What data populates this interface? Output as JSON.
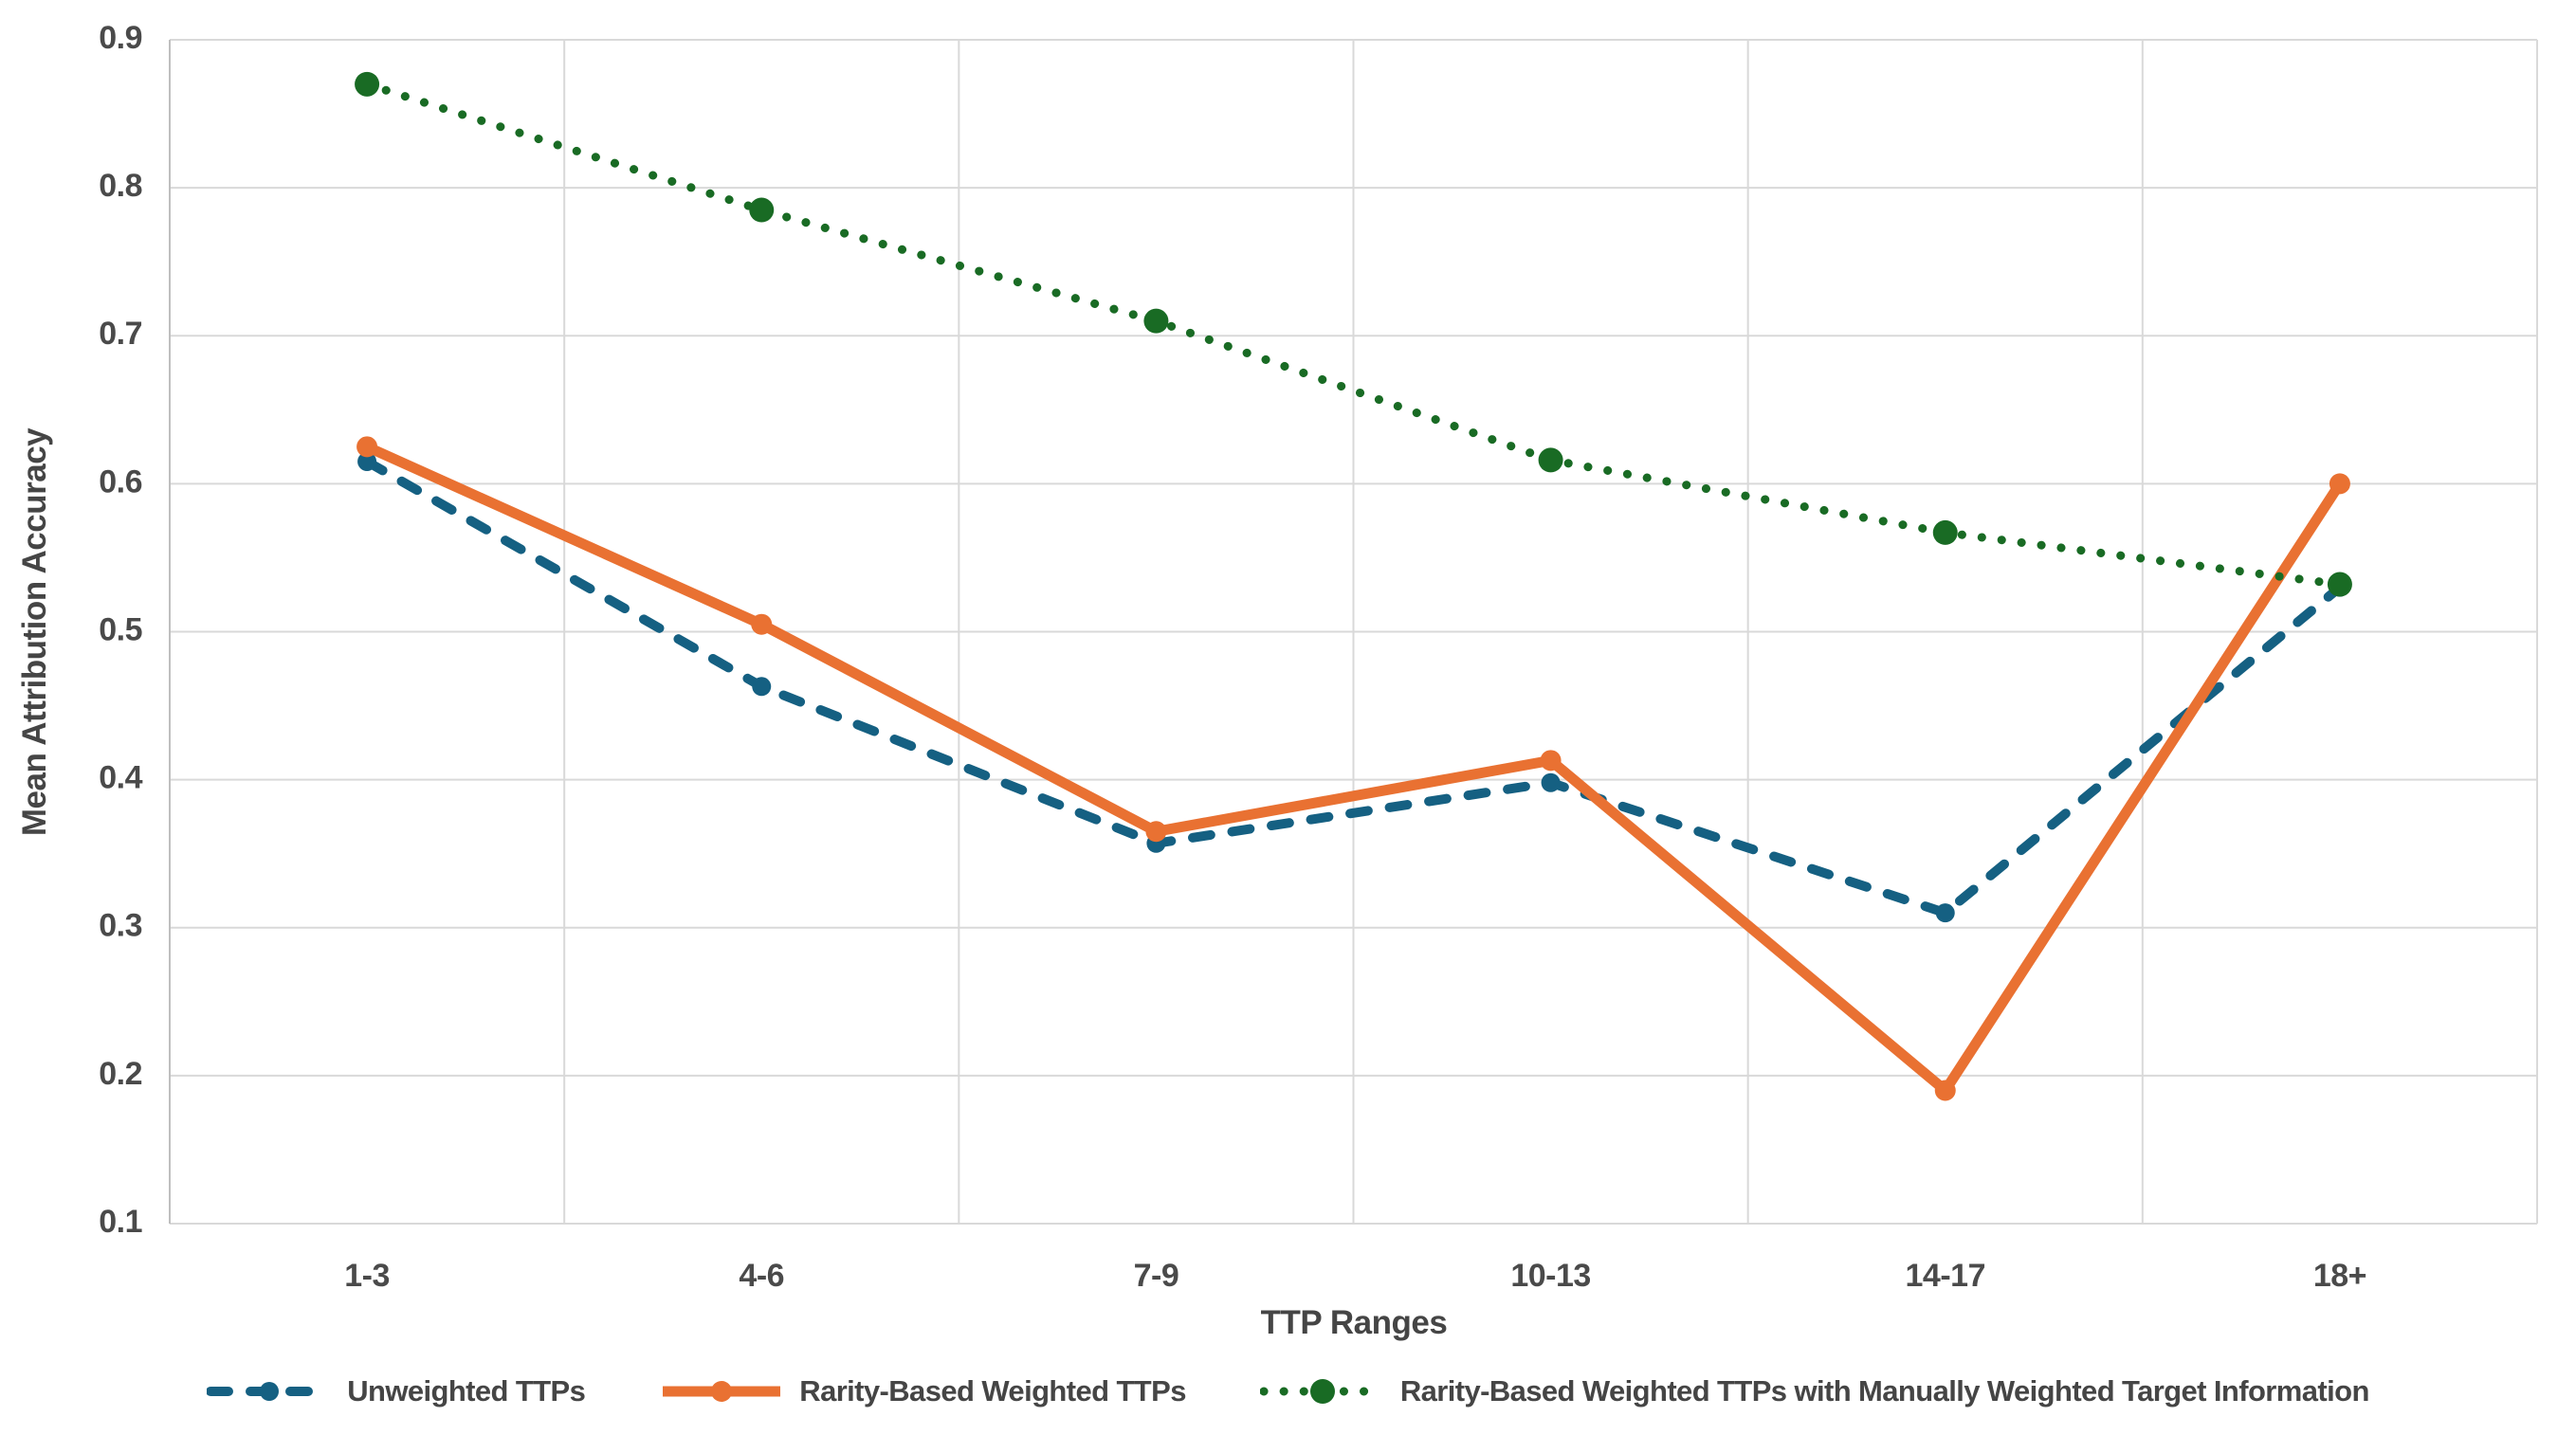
{
  "chart_data": {
    "type": "line",
    "title": "",
    "xlabel": "TTP Ranges",
    "ylabel": "Mean Attribution Accuracy",
    "categories": [
      "1-3",
      "4-6",
      "7-9",
      "10-13",
      "14-17",
      "18+"
    ],
    "y_axis": {
      "min": 0.1,
      "max": 0.9,
      "tick_step": 0.1,
      "tick_labels": [
        "0.9",
        "0.8",
        "0.7",
        "0.6",
        "0.5",
        "0.4",
        "0.3",
        "0.2",
        "0.1"
      ]
    },
    "grid": true,
    "legend_position": "bottom",
    "series": [
      {
        "name": "Unweighted TTPs",
        "color": "#156082",
        "line_style": "dashed",
        "marker": "circle",
        "values": [
          0.615,
          0.463,
          0.357,
          0.398,
          0.31,
          0.53
        ]
      },
      {
        "name": "Rarity-Based Weighted TTPs",
        "color": "#E97132",
        "line_style": "solid",
        "marker": "circle",
        "values": [
          0.625,
          0.505,
          0.365,
          0.413,
          0.19,
          0.6
        ]
      },
      {
        "name": "Rarity-Based Weighted TTPs with Manually Weighted Target Information",
        "color": "#196B24",
        "line_style": "dotted",
        "marker": "circle",
        "values": [
          0.87,
          0.785,
          0.71,
          0.616,
          0.567,
          0.532
        ]
      }
    ],
    "style_colors": {
      "gridline": "#d9d9d9",
      "axis_line": "#bfbfbf",
      "tick_text": "#4a4a4a"
    }
  }
}
